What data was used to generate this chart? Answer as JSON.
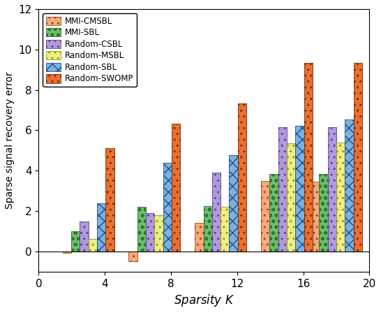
{
  "title": "",
  "xlabel": "Sparsity K",
  "ylabel": "Sparse signal recovery error",
  "xlim": [
    0,
    20
  ],
  "ylim": [
    -1,
    12
  ],
  "yticks": [
    0,
    2,
    4,
    6,
    8,
    10,
    12
  ],
  "xticks": [
    0,
    4,
    8,
    12,
    16,
    20
  ],
  "group_centers": [
    3,
    7,
    11,
    15,
    18
  ],
  "bar_width": 0.52,
  "series": [
    {
      "name": "MMI-CMSBL",
      "values": [
        -0.08,
        -0.5,
        1.42,
        3.5,
        3.45
      ],
      "facecolor": "#F5A97F",
      "edgecolor": "#9B4C00",
      "hatch": ".."
    },
    {
      "name": "MMI-SBL",
      "values": [
        1.0,
        2.2,
        2.25,
        3.85,
        3.85
      ],
      "facecolor": "#6BBF6B",
      "edgecolor": "#2E6B2E",
      "hatch": "oo"
    },
    {
      "name": "Random-CSBL",
      "values": [
        1.47,
        1.9,
        3.9,
        6.15,
        6.15
      ],
      "facecolor": "#B09AD8",
      "edgecolor": "#5B3FA0",
      "hatch": ".."
    },
    {
      "name": "Random-MSBL",
      "values": [
        0.62,
        1.78,
        2.22,
        5.35,
        5.4
      ],
      "facecolor": "#EEEE88",
      "edgecolor": "#999900",
      "hatch": ".."
    },
    {
      "name": "Random-SBL",
      "values": [
        2.38,
        4.38,
        4.78,
        6.22,
        6.55
      ],
      "facecolor": "#7EB0DD",
      "edgecolor": "#1A4F8A",
      "hatch": "xx"
    },
    {
      "name": "Random-SWOMP",
      "values": [
        5.12,
        6.32,
        7.32,
        9.32,
        9.32
      ],
      "facecolor": "#E87030",
      "edgecolor": "#7A2800",
      "hatch": ".."
    }
  ]
}
